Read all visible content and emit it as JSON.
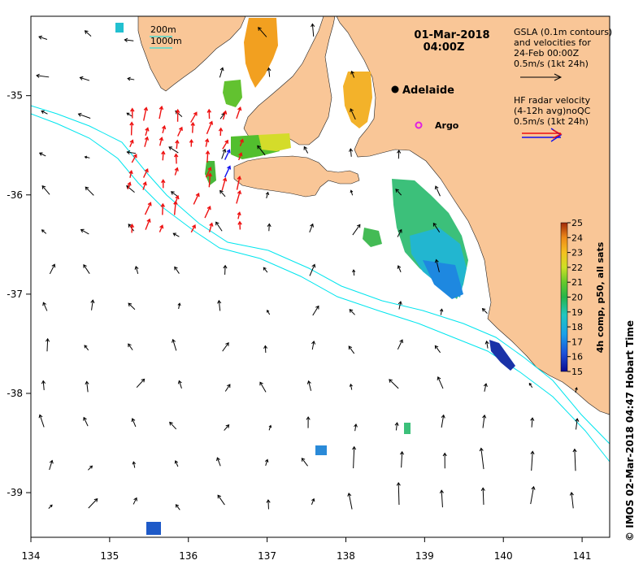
{
  "title": {
    "date": "01-Mar-2018",
    "time": "04:00Z"
  },
  "axes": {
    "lon_ticks": [
      "134",
      "135",
      "136",
      "137",
      "138",
      "139",
      "140",
      "141"
    ],
    "lat_ticks": [
      "-35",
      "-36",
      "-37",
      "-38",
      "-39"
    ],
    "lon_range": [
      134,
      141.35
    ],
    "lat_range": [
      -39.45,
      -34.2
    ]
  },
  "depth_legend": {
    "line1": "200m",
    "line2": "1000m"
  },
  "places": {
    "adelaide": "Adelaide",
    "argo": "Argo"
  },
  "gsla_legend": {
    "line1": "GSLA (0.1m contours)",
    "line2": "and velocities for",
    "line3": "24-Feb 00:00Z",
    "line4": "0.5m/s (1kt 24h)"
  },
  "hf_legend": {
    "line1": "HF radar velocity",
    "line2": "(4-12h avg)noQC",
    "line3": "0.5m/s (1kt 24h)"
  },
  "colorbar": {
    "title": "4h comp, p50, all sats",
    "ticks": [
      "15",
      "16",
      "17",
      "18",
      "19",
      "20",
      "21",
      "22",
      "23",
      "24",
      "25"
    ],
    "min": 15,
    "max": 25
  },
  "credit": "© IMOS 02-Mar-2018 04:47 Hobart Time",
  "colors": {
    "land": "#f9c697",
    "contour": "#00e5ee",
    "radar_red": "#ee1111",
    "radar_blue": "#1111ee"
  }
}
